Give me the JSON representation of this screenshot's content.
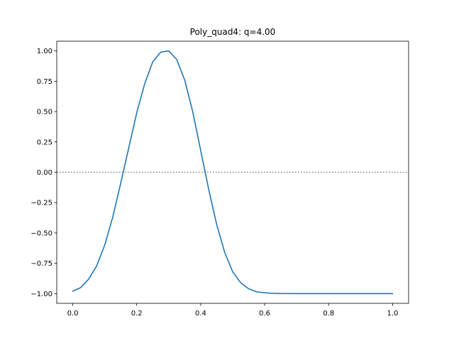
{
  "chart_data": {
    "type": "line",
    "title": "Poly_quad4: q=4.00",
    "xlabel": "",
    "ylabel": "",
    "xlim": [
      -0.05,
      1.05
    ],
    "ylim": [
      -1.08,
      1.08
    ],
    "x_ticks": [
      0.0,
      0.2,
      0.4,
      0.6,
      0.8,
      1.0
    ],
    "x_tick_labels": [
      "0.0",
      "0.2",
      "0.4",
      "0.6",
      "0.8",
      "1.0"
    ],
    "y_ticks": [
      -1.0,
      -0.75,
      -0.5,
      -0.25,
      0.0,
      0.25,
      0.5,
      0.75,
      1.0
    ],
    "y_tick_labels": [
      "−1.00",
      "−0.75",
      "−0.50",
      "−0.25",
      "0.00",
      "0.25",
      "0.50",
      "0.75",
      "1.00"
    ],
    "grid": false,
    "reference_line": {
      "y": 0.0,
      "style": "dotted",
      "color": "#808080"
    },
    "series": [
      {
        "color": "#1f77b4",
        "x": [
          0.0,
          0.025,
          0.05,
          0.075,
          0.1,
          0.125,
          0.15,
          0.175,
          0.2,
          0.225,
          0.25,
          0.275,
          0.3,
          0.325,
          0.35,
          0.375,
          0.4,
          0.425,
          0.45,
          0.475,
          0.5,
          0.525,
          0.55,
          0.575,
          0.6,
          0.625,
          0.65,
          0.7,
          0.75,
          0.8,
          0.85,
          0.9,
          0.95,
          1.0
        ],
        "y": [
          -0.98,
          -0.95,
          -0.88,
          -0.77,
          -0.6,
          -0.37,
          -0.09,
          0.2,
          0.49,
          0.73,
          0.91,
          0.99,
          1.0,
          0.93,
          0.76,
          0.5,
          0.18,
          -0.14,
          -0.43,
          -0.66,
          -0.82,
          -0.91,
          -0.96,
          -0.985,
          -0.993,
          -0.997,
          -0.999,
          -1.0,
          -1.0,
          -1.0,
          -1.0,
          -1.0,
          -1.0,
          -1.0
        ]
      }
    ]
  }
}
